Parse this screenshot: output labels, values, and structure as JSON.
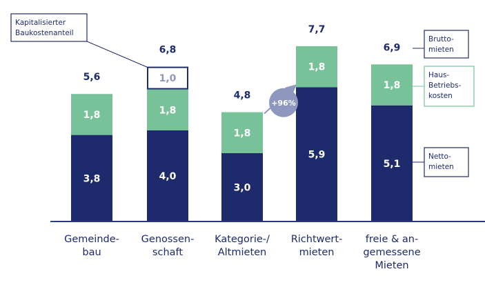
{
  "chart_data": {
    "type": "bar",
    "stacked": true,
    "categories": [
      [
        "Gemeinde-",
        "bau"
      ],
      [
        "Genossen-",
        "schaft"
      ],
      [
        "Kategorie-/",
        "Altmieten"
      ],
      [
        "Richtwert-",
        "mieten"
      ],
      [
        "freie & an-",
        "gemessene",
        "Mieten"
      ]
    ],
    "series": [
      {
        "name": "Netto-mieten",
        "color": "#1d2a6b",
        "values": [
          3.8,
          4.0,
          3.0,
          5.9,
          5.1
        ],
        "labels": [
          "3,8",
          "4,0",
          "3,0",
          "5,9",
          "5,1"
        ]
      },
      {
        "name": "Haus-Betriebs-kosten",
        "color": "#78c29a",
        "values": [
          1.8,
          1.8,
          1.8,
          1.8,
          1.8
        ],
        "labels": [
          "1,8",
          "1,8",
          "1,8",
          "1,8",
          "1,8"
        ]
      },
      {
        "name": "Kapitalisierter Baukostenanteil",
        "color": "#ffffff",
        "values": [
          0,
          1.0,
          0,
          0,
          0
        ],
        "labels": [
          "",
          "1,0",
          "",
          "",
          ""
        ]
      }
    ],
    "totals": [
      "5,6",
      "6,8",
      "4,8",
      "7,7",
      "6,9"
    ],
    "ylim": [
      0,
      8
    ],
    "grid": false,
    "annotation": {
      "text": "+96%",
      "from_category": 2,
      "to_category": 3
    },
    "legend": [
      {
        "series": 2,
        "lines": [
          "Kapitalisierter",
          "Baukostenanteil"
        ],
        "position": "top-left"
      },
      {
        "series": 0,
        "lines": [
          "Brutto-",
          "mieten"
        ],
        "position": "right"
      },
      {
        "series": 1,
        "lines": [
          "Haus-",
          "Betriebs-",
          "kosten"
        ],
        "position": "right"
      },
      {
        "series": 0,
        "lines": [
          "Netto-",
          "mieten"
        ],
        "position": "right"
      }
    ],
    "colors": {
      "netto": "#1d2a6b",
      "betrieb": "#78c29a",
      "badge": "#8e97be",
      "baseline": "#2c3a7e"
    }
  }
}
